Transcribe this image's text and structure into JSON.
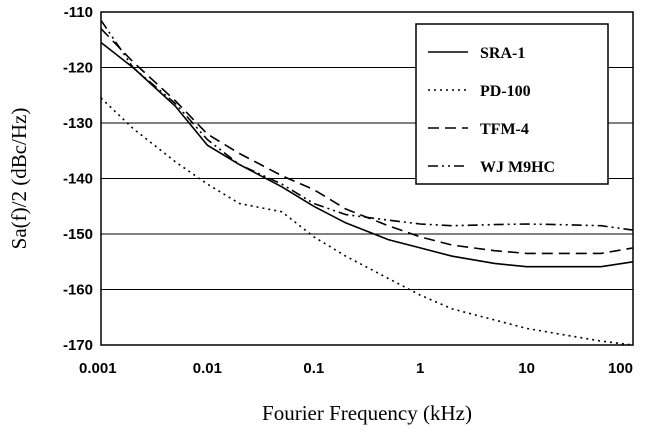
{
  "chart_data": {
    "type": "line",
    "xlabel": "Fourier Frequency (kHz)",
    "ylabel": "Sa(f)/2  (dBc/Hz)",
    "x_scale": "log",
    "xlim": [
      0.001,
      100
    ],
    "ylim": [
      -170,
      -110
    ],
    "x_ticks": [
      "0.001",
      "0.01",
      "0.1",
      "1",
      "10",
      "100"
    ],
    "x_tick_values": [
      0.001,
      0.01,
      0.1,
      1,
      10,
      100
    ],
    "y_ticks": [
      "-110",
      "-120",
      "-130",
      "-140",
      "-150",
      "-160",
      "-170"
    ],
    "y_tick_values": [
      -110,
      -120,
      -130,
      -140,
      -150,
      -160,
      -170
    ],
    "grid": "horizontal",
    "legend_position": "top-right",
    "series": [
      {
        "name": "SRA-1",
        "style": "solid",
        "x": [
          0.001,
          0.002,
          0.005,
          0.01,
          0.02,
          0.05,
          0.1,
          0.2,
          0.5,
          1,
          2,
          5,
          10,
          20,
          50,
          100
        ],
        "y": [
          -115.5,
          -120,
          -127,
          -134,
          -137.5,
          -141.5,
          -145,
          -148,
          -151,
          -152.5,
          -154,
          -155.3,
          -155.9,
          -155.9,
          -155.9,
          -155
        ]
      },
      {
        "name": "PD-100",
        "style": "dotted",
        "x": [
          0.001,
          0.002,
          0.005,
          0.01,
          0.02,
          0.05,
          0.1,
          0.2,
          0.5,
          1,
          2,
          5,
          10,
          20,
          50,
          100
        ],
        "y": [
          -125.5,
          -131,
          -137,
          -141,
          -144.5,
          -146,
          -150.5,
          -154,
          -158,
          -161,
          -163.5,
          -165.5,
          -167,
          -168,
          -169.3,
          -170
        ]
      },
      {
        "name": "TFM-4",
        "style": "dashed",
        "x": [
          0.001,
          0.002,
          0.005,
          0.01,
          0.02,
          0.05,
          0.1,
          0.2,
          0.5,
          1,
          2,
          5,
          10,
          20,
          50,
          100
        ],
        "y": [
          -113,
          -119,
          -126,
          -132,
          -135.5,
          -139.5,
          -142,
          -145.5,
          -148.5,
          -150.5,
          -152,
          -153,
          -153.5,
          -153.5,
          -153.5,
          -152.5
        ]
      },
      {
        "name": "WJ M9HC",
        "style": "dash-dot-dot",
        "x": [
          0.001,
          0.002,
          0.005,
          0.01,
          0.02,
          0.05,
          0.1,
          0.2,
          0.5,
          1,
          2,
          5,
          10,
          20,
          50,
          100
        ],
        "y": [
          -111.5,
          -120,
          -126.5,
          -133,
          -137.5,
          -141,
          -144.5,
          -146.5,
          -147.5,
          -148.2,
          -148.5,
          -148.3,
          -148.2,
          -148.3,
          -148.5,
          -149.3
        ]
      }
    ]
  }
}
